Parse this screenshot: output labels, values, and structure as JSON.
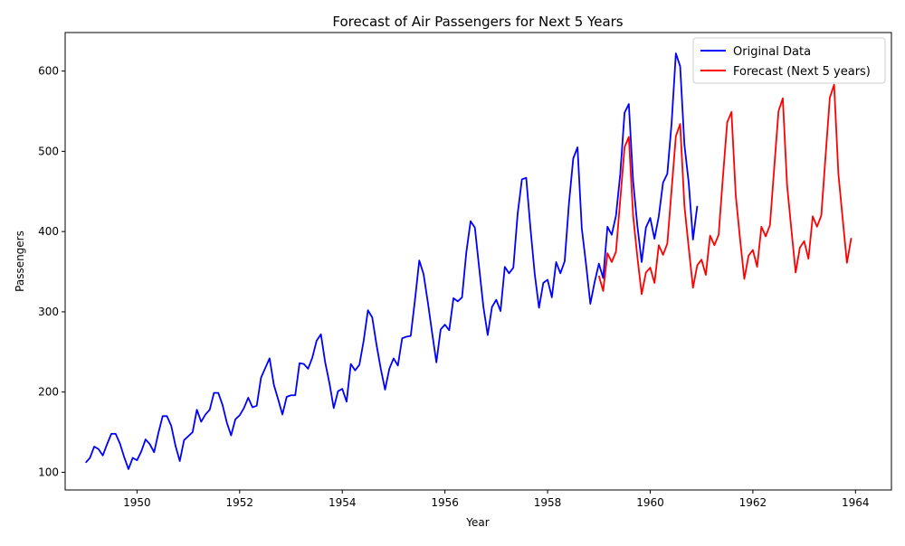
{
  "chart_data": {
    "type": "line",
    "title": "Forecast of Air Passengers for Next 5 Years",
    "xlabel": "Year",
    "ylabel": "Passengers",
    "xlim": [
      1948.6,
      1964.7
    ],
    "ylim": [
      78,
      648
    ],
    "x_ticks": [
      1950,
      1952,
      1954,
      1956,
      1958,
      1960,
      1962,
      1964
    ],
    "y_ticks": [
      100,
      200,
      300,
      400,
      500,
      600
    ],
    "grid": false,
    "legend_position": "top-right",
    "series": [
      {
        "name": "Original Data",
        "color": "#0000ff",
        "start": 1949.0,
        "step": 0.08333333,
        "values": [
          112,
          118,
          132,
          129,
          121,
          135,
          148,
          148,
          136,
          119,
          104,
          118,
          115,
          126,
          141,
          135,
          125,
          149,
          170,
          170,
          158,
          133,
          114,
          140,
          145,
          150,
          178,
          163,
          172,
          178,
          199,
          199,
          184,
          162,
          146,
          166,
          171,
          180,
          193,
          181,
          183,
          218,
          230,
          242,
          209,
          191,
          172,
          194,
          196,
          196,
          236,
          235,
          229,
          243,
          264,
          272,
          237,
          211,
          180,
          201,
          204,
          188,
          235,
          227,
          234,
          264,
          302,
          293,
          259,
          229,
          203,
          229,
          242,
          233,
          267,
          269,
          270,
          315,
          364,
          347,
          312,
          274,
          237,
          278,
          284,
          277,
          317,
          313,
          318,
          374,
          413,
          405,
          355,
          306,
          271,
          306,
          315,
          301,
          356,
          348,
          355,
          422,
          465,
          467,
          404,
          347,
          305,
          336,
          340,
          318,
          362,
          348,
          363,
          435,
          491,
          505,
          404,
          359,
          310,
          337,
          360,
          342,
          406,
          396,
          420,
          472,
          548,
          559,
          463,
          407,
          362,
          405,
          417,
          391,
          419,
          461,
          472,
          535,
          622,
          606,
          508,
          461,
          390,
          432
        ]
      },
      {
        "name": "Forecast (Next 5 years)",
        "color": "#ff0000",
        "start": 1959.0,
        "step": 0.08333333,
        "values": [
          345,
          326,
          373,
          362,
          375,
          440,
          505,
          518,
          420,
          368,
          322,
          349,
          355,
          336,
          383,
          371,
          385,
          452,
          519,
          534,
          432,
          380,
          330,
          358,
          365,
          346,
          395,
          383,
          396,
          468,
          536,
          549,
          445,
          391,
          341,
          370,
          377,
          356,
          406,
          394,
          408,
          480,
          550,
          566,
          458,
          403,
          349,
          380,
          388,
          366,
          419,
          406,
          420,
          494,
          567,
          583,
          472,
          416,
          361,
          392
        ]
      }
    ]
  }
}
